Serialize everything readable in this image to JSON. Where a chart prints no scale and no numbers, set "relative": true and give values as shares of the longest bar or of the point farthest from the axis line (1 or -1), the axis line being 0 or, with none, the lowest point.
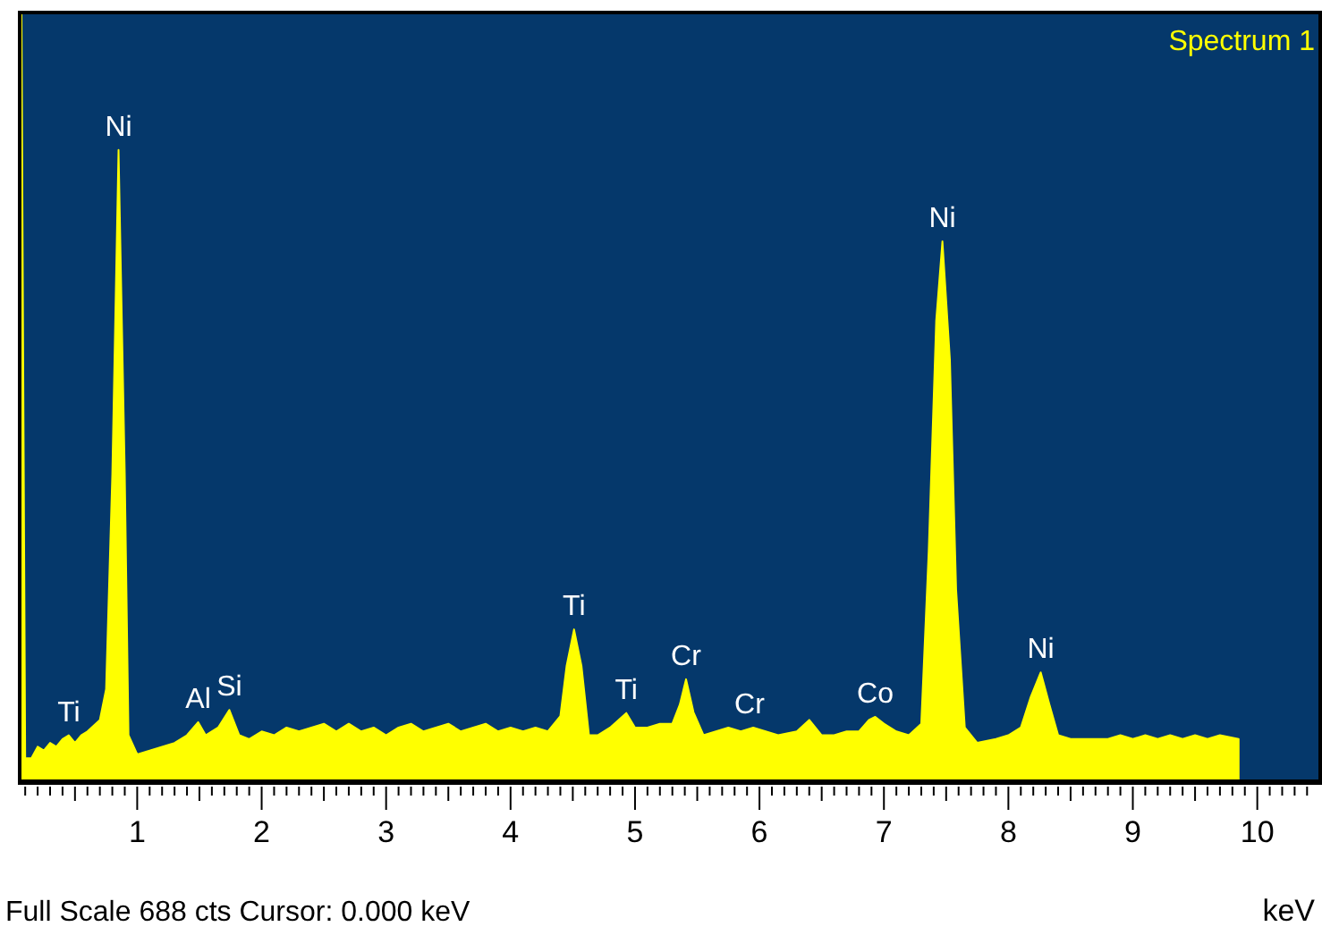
{
  "chart_data": {
    "type": "area",
    "title": "Spectrum 1",
    "xlabel": "keV",
    "relative": true,
    "xlim": [
      0.07,
      10.52
    ],
    "xticks": [
      {
        "value": 0.1,
        "label": null
      },
      {
        "value": 0.2,
        "label": null
      },
      {
        "value": 0.3,
        "label": null
      },
      {
        "value": 0.4,
        "label": null
      },
      {
        "value": 0.5,
        "label": null
      },
      {
        "value": 0.6,
        "label": null
      },
      {
        "value": 0.7,
        "label": null
      },
      {
        "value": 0.8,
        "label": null
      },
      {
        "value": 0.9,
        "label": null
      },
      1,
      {
        "value": 1.1,
        "label": null
      },
      {
        "value": 1.2,
        "label": null
      },
      {
        "value": 1.3,
        "label": null
      },
      {
        "value": 1.4,
        "label": null
      },
      {
        "value": 1.5,
        "label": null
      },
      {
        "value": 1.6,
        "label": null
      },
      {
        "value": 1.7,
        "label": null
      },
      {
        "value": 1.8,
        "label": null
      },
      {
        "value": 1.9,
        "label": null
      },
      2,
      {
        "value": 2.1,
        "label": null
      },
      {
        "value": 2.2,
        "label": null
      },
      {
        "value": 2.3,
        "label": null
      },
      {
        "value": 2.4,
        "label": null
      },
      {
        "value": 2.5,
        "label": null
      },
      {
        "value": 2.6,
        "label": null
      },
      {
        "value": 2.7,
        "label": null
      },
      {
        "value": 2.8,
        "label": null
      },
      {
        "value": 2.9,
        "label": null
      },
      3,
      {
        "value": 3.1,
        "label": null
      },
      {
        "value": 3.2,
        "label": null
      },
      {
        "value": 3.3,
        "label": null
      },
      {
        "value": 3.4,
        "label": null
      },
      {
        "value": 3.5,
        "label": null
      },
      {
        "value": 3.6,
        "label": null
      },
      {
        "value": 3.7,
        "label": null
      },
      {
        "value": 3.8,
        "label": null
      },
      {
        "value": 3.9,
        "label": null
      },
      4,
      {
        "value": 4.1,
        "label": null
      },
      {
        "value": 4.2,
        "label": null
      },
      {
        "value": 4.3,
        "label": null
      },
      {
        "value": 4.4,
        "label": null
      },
      {
        "value": 4.5,
        "label": null
      },
      {
        "value": 4.6,
        "label": null
      },
      {
        "value": 4.7,
        "label": null
      },
      {
        "value": 4.8,
        "label": null
      },
      {
        "value": 4.9,
        "label": null
      },
      5,
      {
        "value": 5.1,
        "label": null
      },
      {
        "value": 5.2,
        "label": null
      },
      {
        "value": 5.3,
        "label": null
      },
      {
        "value": 5.4,
        "label": null
      },
      {
        "value": 5.5,
        "label": null
      },
      {
        "value": 5.6,
        "label": null
      },
      {
        "value": 5.7,
        "label": null
      },
      {
        "value": 5.8,
        "label": null
      },
      {
        "value": 5.9,
        "label": null
      },
      6,
      {
        "value": 6.1,
        "label": null
      },
      {
        "value": 6.2,
        "label": null
      },
      {
        "value": 6.3,
        "label": null
      },
      {
        "value": 6.4,
        "label": null
      },
      {
        "value": 6.5,
        "label": null
      },
      {
        "value": 6.6,
        "label": null
      },
      {
        "value": 6.7,
        "label": null
      },
      {
        "value": 6.8,
        "label": null
      },
      {
        "value": 6.9,
        "label": null
      },
      7,
      {
        "value": 7.1,
        "label": null
      },
      {
        "value": 7.2,
        "label": null
      },
      {
        "value": 7.3,
        "label": null
      },
      {
        "value": 7.4,
        "label": null
      },
      {
        "value": 7.5,
        "label": null
      },
      {
        "value": 7.6,
        "label": null
      },
      {
        "value": 7.7,
        "label": null
      },
      {
        "value": 7.8,
        "label": null
      },
      {
        "value": 7.9,
        "label": null
      },
      8,
      {
        "value": 8.1,
        "label": null
      },
      {
        "value": 8.2,
        "label": null
      },
      {
        "value": 8.3,
        "label": null
      },
      {
        "value": 8.4,
        "label": null
      },
      {
        "value": 8.5,
        "label": null
      },
      {
        "value": 8.6,
        "label": null
      },
      {
        "value": 8.7,
        "label": null
      },
      {
        "value": 8.8,
        "label": null
      },
      {
        "value": 8.9,
        "label": null
      },
      9,
      {
        "value": 9.1,
        "label": null
      },
      {
        "value": 9.2,
        "label": null
      },
      {
        "value": 9.3,
        "label": null
      },
      {
        "value": 9.4,
        "label": null
      },
      {
        "value": 9.5,
        "label": null
      },
      {
        "value": 9.6,
        "label": null
      },
      {
        "value": 9.7,
        "label": null
      },
      {
        "value": 9.8,
        "label": null
      },
      {
        "value": 9.9,
        "label": null
      },
      10,
      {
        "value": 10.1,
        "label": null
      },
      {
        "value": 10.2,
        "label": null
      },
      {
        "value": 10.3,
        "label": null
      },
      {
        "value": 10.4,
        "label": null
      }
    ],
    "x": [
      0.07,
      0.1,
      0.15,
      0.2,
      0.25,
      0.3,
      0.35,
      0.4,
      0.45,
      0.5,
      0.55,
      0.6,
      0.7,
      0.75,
      0.8,
      0.85,
      0.9,
      0.93,
      1.0,
      1.1,
      1.2,
      1.3,
      1.4,
      1.49,
      1.55,
      1.65,
      1.74,
      1.82,
      1.9,
      2.0,
      2.1,
      2.2,
      2.3,
      2.4,
      2.5,
      2.6,
      2.7,
      2.8,
      2.9,
      3.0,
      3.1,
      3.2,
      3.3,
      3.4,
      3.5,
      3.6,
      3.7,
      3.8,
      3.9,
      4.0,
      4.1,
      4.2,
      4.3,
      4.4,
      4.45,
      4.51,
      4.57,
      4.63,
      4.7,
      4.8,
      4.93,
      5.0,
      5.1,
      5.2,
      5.3,
      5.36,
      5.41,
      5.47,
      5.55,
      5.65,
      5.75,
      5.85,
      5.95,
      6.05,
      6.15,
      6.3,
      6.4,
      6.5,
      6.6,
      6.7,
      6.8,
      6.88,
      6.93,
      7.0,
      7.1,
      7.2,
      7.3,
      7.36,
      7.42,
      7.47,
      7.53,
      7.58,
      7.65,
      7.75,
      7.9,
      8.0,
      8.1,
      8.18,
      8.26,
      8.33,
      8.4,
      8.5,
      8.6,
      8.7,
      8.8,
      8.9,
      9.0,
      9.1,
      9.2,
      9.3,
      9.4,
      9.5,
      9.6,
      9.7,
      9.85
    ],
    "series": [
      {
        "color": "#ffff00",
        "values": [
          1.0,
          0.03,
          0.03,
          0.045,
          0.04,
          0.05,
          0.045,
          0.055,
          0.06,
          0.05,
          0.06,
          0.065,
          0.08,
          0.12,
          0.4,
          0.823,
          0.4,
          0.06,
          0.035,
          0.04,
          0.045,
          0.05,
          0.06,
          0.077,
          0.06,
          0.07,
          0.093,
          0.06,
          0.055,
          0.065,
          0.06,
          0.07,
          0.065,
          0.07,
          0.075,
          0.065,
          0.075,
          0.065,
          0.07,
          0.06,
          0.07,
          0.075,
          0.065,
          0.07,
          0.075,
          0.065,
          0.07,
          0.075,
          0.065,
          0.07,
          0.065,
          0.07,
          0.065,
          0.085,
          0.15,
          0.198,
          0.15,
          0.06,
          0.06,
          0.07,
          0.089,
          0.07,
          0.07,
          0.075,
          0.075,
          0.1,
          0.133,
          0.09,
          0.06,
          0.065,
          0.07,
          0.065,
          0.07,
          0.065,
          0.06,
          0.065,
          0.08,
          0.06,
          0.06,
          0.065,
          0.065,
          0.08,
          0.084,
          0.075,
          0.065,
          0.06,
          0.075,
          0.3,
          0.6,
          0.704,
          0.55,
          0.25,
          0.07,
          0.05,
          0.055,
          0.06,
          0.07,
          0.11,
          0.142,
          0.1,
          0.06,
          0.055,
          0.055,
          0.055,
          0.055,
          0.06,
          0.055,
          0.06,
          0.055,
          0.06,
          0.055,
          0.06,
          0.055,
          0.06,
          0.055
        ]
      }
    ],
    "annotations": [
      {
        "text": "Ti",
        "x": 0.45,
        "y": 0.06
      },
      {
        "text": "Ni",
        "x": 0.85,
        "y": 0.823
      },
      {
        "text": "Al",
        "x": 1.49,
        "y": 0.077
      },
      {
        "text": "Si",
        "x": 1.74,
        "y": 0.093
      },
      {
        "text": "Ti",
        "x": 4.51,
        "y": 0.198
      },
      {
        "text": "Ti",
        "x": 4.93,
        "y": 0.089
      },
      {
        "text": "Cr",
        "x": 5.41,
        "y": 0.133
      },
      {
        "text": "Cr",
        "x": 5.92,
        "y": 0.07
      },
      {
        "text": "Co",
        "x": 6.93,
        "y": 0.084
      },
      {
        "text": "Ni",
        "x": 7.47,
        "y": 0.704
      },
      {
        "text": "Ni",
        "x": 8.26,
        "y": 0.142
      },
      "Full Scale 688 cts  Cursor: 0.000 keV"
    ]
  }
}
